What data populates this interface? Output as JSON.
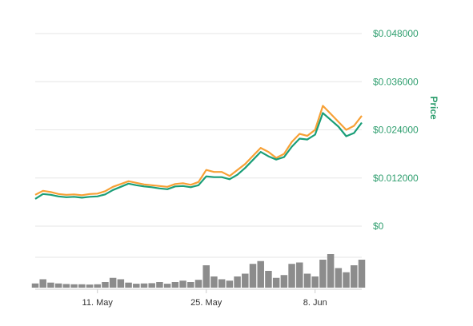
{
  "chart_data": {
    "type": "line",
    "ylabel": "Price",
    "y_ticks": [
      "$0.048000",
      "$0.036000",
      "$0.024000",
      "$0.012000",
      "$0"
    ],
    "y_tick_values": [
      0.048,
      0.036,
      0.024,
      0.012,
      0
    ],
    "ylim": [
      0,
      0.048
    ],
    "x_ticks": [
      "11. May",
      "25. May",
      "8. Jun"
    ],
    "x_tick_days": [
      8,
      22,
      36
    ],
    "xlim_days": [
      0,
      42
    ],
    "grid": true,
    "colors": {
      "series_1": "#f7a035",
      "series_2": "#1a9e78",
      "volume": "#8c8c8c",
      "axis_labels": "#2e9e6e"
    },
    "series": [
      {
        "values": [
          [
            0,
            0.0078
          ],
          [
            1,
            0.0088
          ],
          [
            2,
            0.0085
          ],
          [
            3,
            0.008
          ],
          [
            4,
            0.0078
          ],
          [
            5,
            0.0079
          ],
          [
            6,
            0.0077
          ],
          [
            7,
            0.008
          ],
          [
            8,
            0.0081
          ],
          [
            9,
            0.0087
          ],
          [
            10,
            0.0098
          ],
          [
            11,
            0.0105
          ],
          [
            12,
            0.0112
          ],
          [
            13,
            0.0108
          ],
          [
            14,
            0.0104
          ],
          [
            15,
            0.0102
          ],
          [
            16,
            0.01
          ],
          [
            17,
            0.0098
          ],
          [
            18,
            0.0105
          ],
          [
            19,
            0.0107
          ],
          [
            20,
            0.0103
          ],
          [
            21,
            0.011
          ],
          [
            22,
            0.014
          ],
          [
            23,
            0.0135
          ],
          [
            24,
            0.0135
          ],
          [
            25,
            0.0125
          ],
          [
            26,
            0.014
          ],
          [
            27,
            0.0155
          ],
          [
            28,
            0.0175
          ],
          [
            29,
            0.0195
          ],
          [
            30,
            0.0185
          ],
          [
            31,
            0.017
          ],
          [
            32,
            0.018
          ],
          [
            33,
            0.021
          ],
          [
            34,
            0.023
          ],
          [
            35,
            0.0225
          ],
          [
            36,
            0.024
          ],
          [
            37,
            0.03
          ],
          [
            38,
            0.028
          ],
          [
            39,
            0.026
          ],
          [
            40,
            0.024
          ],
          [
            41,
            0.025
          ],
          [
            42,
            0.0275
          ]
        ]
      },
      {
        "values": [
          [
            0,
            0.0068
          ],
          [
            1,
            0.008
          ],
          [
            2,
            0.0078
          ],
          [
            3,
            0.0074
          ],
          [
            4,
            0.0072
          ],
          [
            5,
            0.0073
          ],
          [
            6,
            0.0071
          ],
          [
            7,
            0.0073
          ],
          [
            8,
            0.0074
          ],
          [
            9,
            0.0079
          ],
          [
            10,
            0.009
          ],
          [
            11,
            0.0098
          ],
          [
            12,
            0.0106
          ],
          [
            13,
            0.0102
          ],
          [
            14,
            0.0099
          ],
          [
            15,
            0.0097
          ],
          [
            16,
            0.0094
          ],
          [
            17,
            0.0092
          ],
          [
            18,
            0.0099
          ],
          [
            19,
            0.01
          ],
          [
            20,
            0.0097
          ],
          [
            21,
            0.0102
          ],
          [
            22,
            0.0124
          ],
          [
            23,
            0.0122
          ],
          [
            24,
            0.0122
          ],
          [
            25,
            0.0117
          ],
          [
            26,
            0.0128
          ],
          [
            27,
            0.0145
          ],
          [
            28,
            0.0165
          ],
          [
            29,
            0.0185
          ],
          [
            30,
            0.0174
          ],
          [
            31,
            0.0166
          ],
          [
            32,
            0.0172
          ],
          [
            33,
            0.0198
          ],
          [
            34,
            0.0218
          ],
          [
            35,
            0.0216
          ],
          [
            36,
            0.0228
          ],
          [
            37,
            0.0282
          ],
          [
            38,
            0.0265
          ],
          [
            39,
            0.0248
          ],
          [
            40,
            0.0224
          ],
          [
            41,
            0.0232
          ],
          [
            42,
            0.0258
          ]
        ]
      }
    ],
    "volume": [
      [
        0,
        0.15
      ],
      [
        1,
        0.3
      ],
      [
        2,
        0.18
      ],
      [
        3,
        0.15
      ],
      [
        4,
        0.13
      ],
      [
        5,
        0.12
      ],
      [
        6,
        0.12
      ],
      [
        7,
        0.11
      ],
      [
        8,
        0.12
      ],
      [
        9,
        0.2
      ],
      [
        10,
        0.35
      ],
      [
        11,
        0.3
      ],
      [
        12,
        0.18
      ],
      [
        13,
        0.14
      ],
      [
        14,
        0.15
      ],
      [
        15,
        0.16
      ],
      [
        16,
        0.2
      ],
      [
        17,
        0.14
      ],
      [
        18,
        0.2
      ],
      [
        19,
        0.25
      ],
      [
        20,
        0.2
      ],
      [
        21,
        0.28
      ],
      [
        22,
        0.8
      ],
      [
        23,
        0.4
      ],
      [
        24,
        0.3
      ],
      [
        25,
        0.25
      ],
      [
        26,
        0.4
      ],
      [
        27,
        0.5
      ],
      [
        28,
        0.85
      ],
      [
        29,
        0.95
      ],
      [
        30,
        0.6
      ],
      [
        31,
        0.35
      ],
      [
        32,
        0.45
      ],
      [
        33,
        0.85
      ],
      [
        34,
        0.9
      ],
      [
        35,
        0.5
      ],
      [
        36,
        0.4
      ],
      [
        37,
        1.0
      ],
      [
        38,
        1.2
      ],
      [
        39,
        0.7
      ],
      [
        40,
        0.55
      ],
      [
        41,
        0.8
      ],
      [
        42,
        1.0
      ]
    ]
  }
}
